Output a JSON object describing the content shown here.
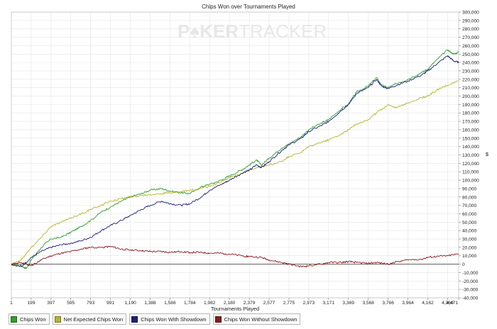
{
  "watermark": {
    "left": "P",
    "spade": "♠",
    "mid": "KER",
    "right": "TRACKER"
  },
  "chart_data": {
    "type": "line",
    "title": "Chips Won over Tournaments Played",
    "xlabel": "Tournaments Played",
    "ylabel": "$",
    "xlim": [
      1,
      4471
    ],
    "ylim": [
      -40000,
      300000
    ],
    "x_ticks": [
      1,
      199,
      397,
      595,
      793,
      991,
      1190,
      1388,
      1586,
      1784,
      1982,
      2180,
      2379,
      2577,
      2775,
      2973,
      3171,
      3369,
      3568,
      3766,
      3964,
      4162,
      4360,
      4471
    ],
    "x_tick_labels": [
      "1",
      "199",
      "397",
      "595",
      "793",
      "991",
      "1,190",
      "1,388",
      "1,586",
      "1,784",
      "1,982",
      "2,180",
      "2,379",
      "2,577",
      "2,775",
      "2,973",
      "3,171",
      "3,369",
      "3,568",
      "3,766",
      "3,964",
      "4,162",
      "4,360",
      "4,471"
    ],
    "y_tick_step": 10000,
    "grid": true,
    "legend_position": "bottom-left",
    "series": [
      {
        "name": "Chips Won",
        "color": "#2f9e2f",
        "x": [
          1,
          100,
          150,
          199,
          300,
          397,
          500,
          595,
          700,
          793,
          900,
          991,
          1100,
          1190,
          1300,
          1388,
          1500,
          1586,
          1700,
          1784,
          1900,
          1982,
          2100,
          2180,
          2300,
          2379,
          2450,
          2500,
          2577,
          2700,
          2775,
          2900,
          2973,
          3100,
          3171,
          3300,
          3369,
          3450,
          3568,
          3650,
          3700,
          3766,
          3850,
          3964,
          4100,
          4162,
          4250,
          4360,
          4420,
          4471
        ],
        "y": [
          0,
          -2000,
          -5000,
          5000,
          20000,
          30000,
          32000,
          38000,
          45000,
          52000,
          62000,
          68000,
          75000,
          80000,
          84000,
          88000,
          90000,
          87000,
          85000,
          84000,
          92000,
          95000,
          100000,
          105000,
          112000,
          118000,
          124000,
          118000,
          126000,
          138000,
          143000,
          152000,
          160000,
          168000,
          172000,
          185000,
          190000,
          205000,
          212000,
          222000,
          213000,
          210000,
          215000,
          220000,
          228000,
          232000,
          243000,
          255000,
          250000,
          252000
        ]
      },
      {
        "name": "Net Expected Chips Won",
        "color": "#b5b52a",
        "x": [
          1,
          100,
          199,
          300,
          397,
          500,
          595,
          700,
          793,
          900,
          991,
          1100,
          1190,
          1300,
          1388,
          1500,
          1586,
          1700,
          1784,
          1900,
          1982,
          2100,
          2180,
          2300,
          2379,
          2500,
          2577,
          2700,
          2775,
          2900,
          2973,
          3100,
          3171,
          3300,
          3369,
          3450,
          3568,
          3650,
          3766,
          3850,
          3964,
          4100,
          4162,
          4250,
          4360,
          4471
        ],
        "y": [
          0,
          5000,
          20000,
          32000,
          45000,
          50000,
          55000,
          60000,
          65000,
          70000,
          75000,
          78000,
          80000,
          82000,
          83000,
          84000,
          85000,
          86000,
          88000,
          90000,
          93000,
          98000,
          103000,
          108000,
          112000,
          116000,
          118000,
          122000,
          128000,
          133000,
          140000,
          145000,
          148000,
          155000,
          160000,
          167000,
          172000,
          180000,
          190000,
          186000,
          192000,
          198000,
          200000,
          207000,
          213000,
          218000
        ]
      },
      {
        "name": "Chips Won With Showdown",
        "color": "#1f1f80",
        "x": [
          1,
          100,
          199,
          300,
          397,
          500,
          595,
          700,
          793,
          900,
          991,
          1100,
          1190,
          1300,
          1388,
          1500,
          1586,
          1700,
          1784,
          1900,
          1982,
          2100,
          2180,
          2300,
          2379,
          2450,
          2500,
          2577,
          2700,
          2775,
          2900,
          2973,
          3100,
          3171,
          3300,
          3369,
          3450,
          3568,
          3650,
          3700,
          3766,
          3850,
          3964,
          4100,
          4162,
          4250,
          4360,
          4420,
          4471
        ],
        "y": [
          0,
          -3000,
          8000,
          15000,
          20000,
          23000,
          25000,
          28000,
          32000,
          40000,
          46000,
          52000,
          58000,
          65000,
          70000,
          75000,
          72000,
          70000,
          72000,
          80000,
          88000,
          95000,
          100000,
          108000,
          112000,
          118000,
          115000,
          122000,
          135000,
          142000,
          150000,
          158000,
          165000,
          170000,
          183000,
          190000,
          203000,
          210000,
          220000,
          212000,
          209000,
          213000,
          218000,
          225000,
          230000,
          238000,
          248000,
          242000,
          240000
        ]
      },
      {
        "name": "Chips Won Without Showdown",
        "color": "#8b1a1a",
        "x": [
          1,
          100,
          199,
          300,
          397,
          500,
          595,
          700,
          793,
          900,
          991,
          1100,
          1190,
          1300,
          1388,
          1500,
          1586,
          1700,
          1784,
          1900,
          1982,
          2100,
          2180,
          2300,
          2379,
          2500,
          2577,
          2700,
          2775,
          2900,
          2973,
          3100,
          3171,
          3300,
          3369,
          3450,
          3568,
          3650,
          3766,
          3850,
          3964,
          4100,
          4162,
          4250,
          4360,
          4471
        ],
        "y": [
          0,
          2000,
          -2000,
          5000,
          10000,
          13000,
          15000,
          18000,
          20000,
          20000,
          21000,
          18000,
          17000,
          16000,
          15000,
          15000,
          14000,
          15000,
          14000,
          14000,
          13000,
          13000,
          12000,
          10000,
          9000,
          8000,
          5000,
          2000,
          0,
          -3000,
          -2000,
          0,
          2000,
          2000,
          3000,
          2000,
          1000,
          2000,
          0,
          3000,
          5000,
          6000,
          8000,
          9000,
          10000,
          12000
        ]
      }
    ]
  }
}
